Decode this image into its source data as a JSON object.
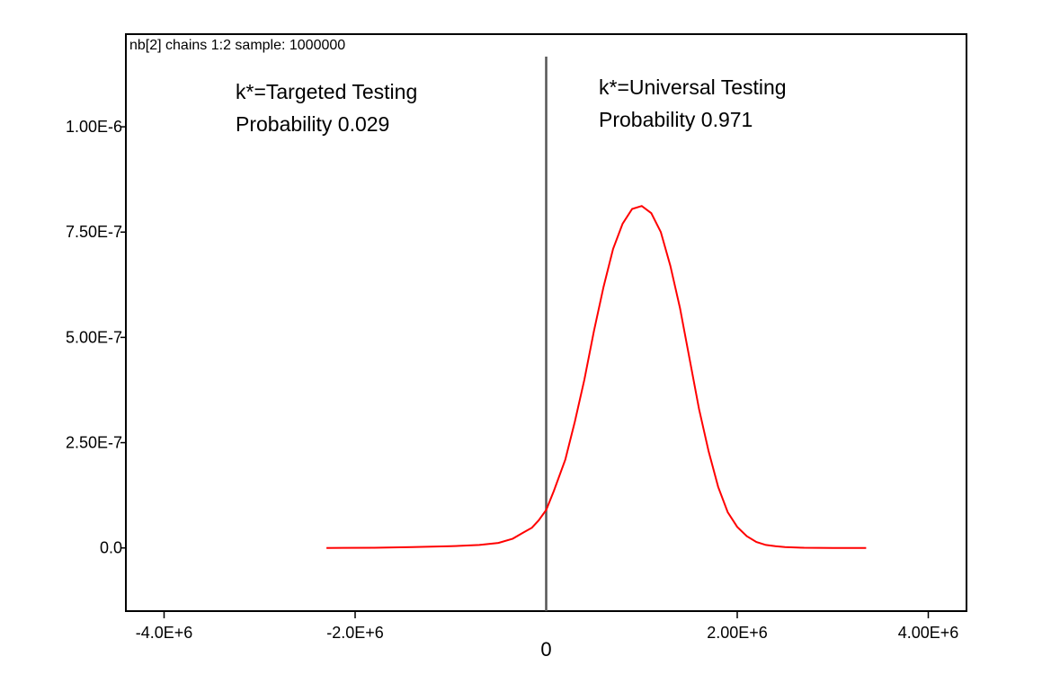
{
  "chart_data": {
    "type": "line",
    "title": "nb[2] chains 1:2 sample: 1000000",
    "xlabel": "",
    "ylabel": "",
    "xlim": [
      -4400000,
      4400000
    ],
    "ylim": [
      -1.5e-07,
      1.22e-06
    ],
    "x_ticks": [
      {
        "value": -4000000,
        "label": "-4.0E+6"
      },
      {
        "value": -2000000,
        "label": "-2.0E+6"
      },
      {
        "value": 2000000,
        "label": "2.00E+6"
      },
      {
        "value": 4000000,
        "label": "4.00E+6"
      }
    ],
    "zero_label": "0",
    "y_ticks": [
      {
        "value": 0,
        "label": "0.0"
      },
      {
        "value": 2.5e-07,
        "label": "2.50E-7"
      },
      {
        "value": 5e-07,
        "label": "5.00E-7"
      },
      {
        "value": 7.5e-07,
        "label": "7.50E-7"
      },
      {
        "value": 1e-06,
        "label": "1.00E-6"
      }
    ],
    "vertical_line_x": 0,
    "grid": false,
    "colors": {
      "series": "#ff0000",
      "vline": "#555555",
      "frame": "#000000"
    },
    "annotations": [
      {
        "id": "left",
        "lines": [
          "k*=Targeted Testing",
          "Probability 0.029"
        ]
      },
      {
        "id": "right",
        "lines": [
          "k*=Universal Testing",
          "Probability 0.971"
        ]
      }
    ],
    "series": [
      {
        "x": [
          -2300000,
          -1800000,
          -1400000,
          -1000000,
          -700000,
          -500000,
          -350000,
          -250000,
          -150000,
          -80000,
          0,
          80000,
          200000,
          300000,
          400000,
          500000,
          600000,
          700000,
          800000,
          900000,
          1000000,
          1100000,
          1200000,
          1300000,
          1400000,
          1500000,
          1600000,
          1700000,
          1800000,
          1900000,
          2000000,
          2100000,
          2200000,
          2300000,
          2400000,
          2500000,
          2700000,
          3000000,
          3350000
        ],
        "y": [
          0,
          5e-10,
          2e-09,
          4e-09,
          7e-09,
          1.2e-08,
          2.2e-08,
          3.5e-08,
          4.8e-08,
          6.5e-08,
          9e-08,
          1.35e-07,
          2.1e-07,
          3e-07,
          4e-07,
          5.15e-07,
          6.2e-07,
          7.1e-07,
          7.7e-07,
          8.05e-07,
          8.12e-07,
          7.95e-07,
          7.5e-07,
          6.7e-07,
          5.7e-07,
          4.5e-07,
          3.3e-07,
          2.3e-07,
          1.45e-07,
          8.5e-08,
          5e-08,
          2.8e-08,
          1.4e-08,
          7e-09,
          4e-09,
          2e-09,
          5e-10,
          0,
          0
        ]
      }
    ]
  }
}
